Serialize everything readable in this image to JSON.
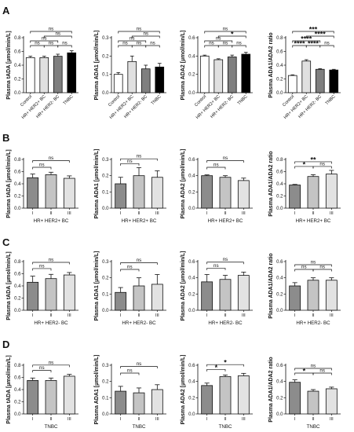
{
  "panel_labels": [
    "A",
    "B",
    "C",
    "D"
  ],
  "colors": {
    "control": "#ffffff",
    "hr_her2_pos": "#e0e0e0",
    "hr_her2_neg": "#7f7f7f",
    "tnbc": "#000000",
    "stage_I": "#8c8c8c",
    "stage_II": "#c4c4c4",
    "stage_III": "#e2e2e2",
    "axis": "#111111"
  },
  "chart_data": [
    {
      "type": "bar",
      "panel": "A",
      "ylabel": "Plasma tADA [µmol/min/L]",
      "ylim": [
        0,
        0.8
      ],
      "yticks": [
        "0.0",
        "0.2",
        "0.4",
        "0.6",
        "0.8"
      ],
      "xlabel": "",
      "categories": [
        "Control",
        "HR+ HER2+ BC",
        "HR+ HER2- BC",
        "TNBC"
      ],
      "values": [
        0.51,
        0.51,
        0.53,
        0.58
      ],
      "errors": [
        0.02,
        0.02,
        0.03,
        0.03
      ],
      "fills": [
        "#ffffff",
        "#e0e0e0",
        "#7f7f7f",
        "#000000"
      ],
      "sig": [
        {
          "a": 0,
          "b": 1,
          "label": "ns"
        },
        {
          "a": 1,
          "b": 2,
          "label": "ns"
        },
        {
          "a": 2,
          "b": 3,
          "label": "ns"
        },
        {
          "a": 0,
          "b": 2,
          "label": "ns"
        },
        {
          "a": 1,
          "b": 3,
          "label": "ns"
        },
        {
          "a": 0,
          "b": 3,
          "label": "ns"
        }
      ]
    },
    {
      "type": "bar",
      "panel": "A",
      "ylabel": "Plasma ADA1 [µmol/min/L]",
      "ylim": [
        0,
        0.3
      ],
      "yticks": [
        "0.0",
        "0.1",
        "0.2",
        "0.3"
      ],
      "xlabel": "",
      "categories": [
        "Control",
        "HR+ HER2+ BC",
        "HR+ HER2- BC",
        "TNBC"
      ],
      "values": [
        0.1,
        0.17,
        0.13,
        0.14
      ],
      "errors": [
        0.01,
        0.03,
        0.02,
        0.02
      ],
      "fills": [
        "#ffffff",
        "#e0e0e0",
        "#7f7f7f",
        "#000000"
      ],
      "sig": [
        {
          "a": 0,
          "b": 1,
          "label": "ns"
        },
        {
          "a": 1,
          "b": 2,
          "label": "ns"
        },
        {
          "a": 2,
          "b": 3,
          "label": "ns"
        },
        {
          "a": 0,
          "b": 2,
          "label": "ns"
        },
        {
          "a": 1,
          "b": 3,
          "label": "ns"
        },
        {
          "a": 0,
          "b": 3,
          "label": "ns"
        }
      ]
    },
    {
      "type": "bar",
      "panel": "A",
      "ylabel": "Plasma ADA2 [µmol/min/L]",
      "ylim": [
        0,
        0.6
      ],
      "yticks": [
        "0.0",
        "0.2",
        "0.4",
        "0.6"
      ],
      "xlabel": "",
      "categories": [
        "Control",
        "HR+ HER2+ BC",
        "HR+ HER2- BC",
        "TNBC"
      ],
      "values": [
        0.4,
        0.36,
        0.39,
        0.42
      ],
      "errors": [
        0.01,
        0.01,
        0.02,
        0.02
      ],
      "fills": [
        "#ffffff",
        "#e0e0e0",
        "#7f7f7f",
        "#000000"
      ],
      "sig": [
        {
          "a": 0,
          "b": 1,
          "label": "ns"
        },
        {
          "a": 1,
          "b": 2,
          "label": "ns"
        },
        {
          "a": 2,
          "b": 3,
          "label": "ns"
        },
        {
          "a": 0,
          "b": 2,
          "label": "ns"
        },
        {
          "a": 1,
          "b": 3,
          "label": "*"
        },
        {
          "a": 0,
          "b": 3,
          "label": "ns"
        }
      ]
    },
    {
      "type": "bar",
      "panel": "A",
      "ylabel": "Plasma ADA1/ADA2 ratio",
      "ylim": [
        0,
        0.8
      ],
      "yticks": [
        "0.0",
        "0.2",
        "0.4",
        "0.6",
        "0.8"
      ],
      "xlabel": "",
      "categories": [
        "Control",
        "HR+ HER2+ BC",
        "HR+ HER2- BC",
        "TNBC"
      ],
      "values": [
        0.25,
        0.46,
        0.34,
        0.33
      ],
      "errors": [
        0.01,
        0.02,
        0.01,
        0.01
      ],
      "fills": [
        "#ffffff",
        "#e0e0e0",
        "#7f7f7f",
        "#000000"
      ],
      "sig": [
        {
          "a": 0,
          "b": 1,
          "label": "****"
        },
        {
          "a": 1,
          "b": 2,
          "label": "****"
        },
        {
          "a": 2,
          "b": 3,
          "label": "ns"
        },
        {
          "a": 0,
          "b": 2,
          "label": "****"
        },
        {
          "a": 1,
          "b": 3,
          "label": "****"
        },
        {
          "a": 0,
          "b": 3,
          "label": "***"
        }
      ]
    },
    {
      "type": "bar",
      "panel": "B",
      "ylabel": "Plasma tADA [µmol/min/L]",
      "ylim": [
        0,
        0.8
      ],
      "yticks": [
        "0.0",
        "0.2",
        "0.4",
        "0.6",
        "0.8"
      ],
      "xlabel": "HR+ HER2+ BC",
      "categories": [
        "I",
        "II",
        "III"
      ],
      "values": [
        0.5,
        0.55,
        0.49
      ],
      "errors": [
        0.06,
        0.04,
        0.04
      ],
      "fills": [
        "#8c8c8c",
        "#c4c4c4",
        "#e2e2e2"
      ],
      "sig": [
        {
          "a": 0,
          "b": 1,
          "label": "ns"
        },
        {
          "a": 0,
          "b": 2,
          "label": "ns"
        }
      ]
    },
    {
      "type": "bar",
      "panel": "B",
      "ylabel": "Plasma ADA1 [µmol/min/L]",
      "ylim": [
        0,
        0.3
      ],
      "yticks": [
        "0.0",
        "0.1",
        "0.2",
        "0.3"
      ],
      "xlabel": "HR+ HER2+ BC",
      "categories": [
        "I",
        "II",
        "III"
      ],
      "values": [
        0.15,
        0.2,
        0.19
      ],
      "errors": [
        0.04,
        0.05,
        0.04
      ],
      "fills": [
        "#8c8c8c",
        "#c4c4c4",
        "#e2e2e2"
      ],
      "sig": [
        {
          "a": 0,
          "b": 1,
          "label": "ns"
        },
        {
          "a": 0,
          "b": 2,
          "label": "ns"
        }
      ]
    },
    {
      "type": "bar",
      "panel": "B",
      "ylabel": "Plasma ADA2 [µmol/min/L]",
      "ylim": [
        0,
        0.6
      ],
      "yticks": [
        "0.0",
        "0.2",
        "0.4",
        "0.6"
      ],
      "xlabel": "HR+ HER2+ BC",
      "categories": [
        "I",
        "II",
        "III"
      ],
      "values": [
        0.4,
        0.38,
        0.34
      ],
      "errors": [
        0.01,
        0.02,
        0.03
      ],
      "fills": [
        "#8c8c8c",
        "#c4c4c4",
        "#e2e2e2"
      ],
      "sig": [
        {
          "a": 0,
          "b": 1,
          "label": "ns"
        },
        {
          "a": 0,
          "b": 2,
          "label": "ns"
        }
      ]
    },
    {
      "type": "bar",
      "panel": "B",
      "ylabel": "Plasma ADA1/ADA2 ratio",
      "ylim": [
        0,
        0.8
      ],
      "yticks": [
        "0.0",
        "0.2",
        "0.4",
        "0.6",
        "0.8"
      ],
      "xlabel": "HR+ HER2+ BC",
      "categories": [
        "I",
        "II",
        "III"
      ],
      "values": [
        0.38,
        0.52,
        0.56
      ],
      "errors": [
        0.01,
        0.03,
        0.06
      ],
      "fills": [
        "#8c8c8c",
        "#c4c4c4",
        "#e2e2e2"
      ],
      "sig": [
        {
          "a": 0,
          "b": 1,
          "label": "*"
        },
        {
          "a": 1,
          "b": 2,
          "label": "ns"
        },
        {
          "a": 0,
          "b": 2,
          "label": "**"
        }
      ]
    },
    {
      "type": "bar",
      "panel": "C",
      "ylabel": "Plasma tADA [µmol/min/L]",
      "ylim": [
        0,
        0.8
      ],
      "yticks": [
        "0.0",
        "0.2",
        "0.4",
        "0.6",
        "0.8"
      ],
      "xlabel": "HR+ HER2- BC",
      "categories": [
        "I",
        "II",
        "III"
      ],
      "values": [
        0.46,
        0.52,
        0.58
      ],
      "errors": [
        0.1,
        0.07,
        0.04
      ],
      "fills": [
        "#8c8c8c",
        "#c4c4c4",
        "#e2e2e2"
      ],
      "sig": [
        {
          "a": 0,
          "b": 1,
          "label": "ns"
        },
        {
          "a": 0,
          "b": 2,
          "label": "ns"
        }
      ]
    },
    {
      "type": "bar",
      "panel": "C",
      "ylabel": "Plasma ADA1 [µmol/min/L]",
      "ylim": [
        0,
        0.3
      ],
      "yticks": [
        "0.0",
        "0.1",
        "0.2",
        "0.3"
      ],
      "xlabel": "HR+ HER2- BC",
      "categories": [
        "I",
        "II",
        "III"
      ],
      "values": [
        0.11,
        0.15,
        0.16
      ],
      "errors": [
        0.03,
        0.05,
        0.06
      ],
      "fills": [
        "#8c8c8c",
        "#c4c4c4",
        "#e2e2e2"
      ],
      "sig": [
        {
          "a": 0,
          "b": 1,
          "label": "ns"
        },
        {
          "a": 0,
          "b": 2,
          "label": "ns"
        }
      ]
    },
    {
      "type": "bar",
      "panel": "C",
      "ylabel": "Plasma ADA2 [µmol/min/L]",
      "ylim": [
        0,
        0.6
      ],
      "yticks": [
        "0.0",
        "0.2",
        "0.4",
        "0.6"
      ],
      "xlabel": "HR+ HER2- BC",
      "categories": [
        "I",
        "II",
        "III"
      ],
      "values": [
        0.35,
        0.38,
        0.43
      ],
      "errors": [
        0.09,
        0.05,
        0.04
      ],
      "fills": [
        "#8c8c8c",
        "#c4c4c4",
        "#e2e2e2"
      ],
      "sig": [
        {
          "a": 0,
          "b": 1,
          "label": "ns"
        },
        {
          "a": 0,
          "b": 2,
          "label": "ns"
        }
      ]
    },
    {
      "type": "bar",
      "panel": "C",
      "ylabel": "Plasma ADA1/ADA2 ratio",
      "ylim": [
        0,
        0.6
      ],
      "yticks": [
        "0.0",
        "0.2",
        "0.4",
        "0.6"
      ],
      "xlabel": "HR+ HER2- BC",
      "categories": [
        "I",
        "II",
        "III"
      ],
      "values": [
        0.3,
        0.37,
        0.37
      ],
      "errors": [
        0.04,
        0.03,
        0.03
      ],
      "fills": [
        "#8c8c8c",
        "#c4c4c4",
        "#e2e2e2"
      ],
      "sig": [
        {
          "a": 0,
          "b": 1,
          "label": "ns"
        },
        {
          "a": 1,
          "b": 2,
          "label": "ns"
        },
        {
          "a": 0,
          "b": 2,
          "label": "ns"
        }
      ]
    },
    {
      "type": "bar",
      "panel": "D",
      "ylabel": "Plasma tADA [µmol/min/L]",
      "ylim": [
        0,
        0.8
      ],
      "yticks": [
        "0.0",
        "0.2",
        "0.4",
        "0.6",
        "0.8"
      ],
      "xlabel": "TNBC",
      "categories": [
        "I",
        "II",
        "III"
      ],
      "values": [
        0.55,
        0.55,
        0.62
      ],
      "errors": [
        0.04,
        0.04,
        0.03
      ],
      "fills": [
        "#8c8c8c",
        "#c4c4c4",
        "#e2e2e2"
      ],
      "sig": [
        {
          "a": 0,
          "b": 1,
          "label": "ns"
        },
        {
          "a": 0,
          "b": 2,
          "label": "ns"
        }
      ]
    },
    {
      "type": "bar",
      "panel": "D",
      "ylabel": "Plasma ADA1 [µmol/min/L]",
      "ylim": [
        0,
        0.3
      ],
      "yticks": [
        "0.0",
        "0.1",
        "0.2",
        "0.3"
      ],
      "xlabel": "TNBC",
      "categories": [
        "I",
        "II",
        "III"
      ],
      "values": [
        0.14,
        0.13,
        0.15
      ],
      "errors": [
        0.03,
        0.03,
        0.03
      ],
      "fills": [
        "#8c8c8c",
        "#c4c4c4",
        "#e2e2e2"
      ],
      "sig": [
        {
          "a": 0,
          "b": 1,
          "label": "ns"
        },
        {
          "a": 0,
          "b": 2,
          "label": "ns"
        }
      ]
    },
    {
      "type": "bar",
      "panel": "D",
      "ylabel": "Plasma ADA2 [µmol/min/L]",
      "ylim": [
        0,
        0.6
      ],
      "yticks": [
        "0.0",
        "0.2",
        "0.4",
        "0.6"
      ],
      "xlabel": "TNBC",
      "categories": [
        "I",
        "II",
        "III"
      ],
      "values": [
        0.35,
        0.46,
        0.47
      ],
      "errors": [
        0.03,
        0.02,
        0.03
      ],
      "fills": [
        "#8c8c8c",
        "#c4c4c4",
        "#e2e2e2"
      ],
      "sig": [
        {
          "a": 0,
          "b": 1,
          "label": "*"
        },
        {
          "a": 0,
          "b": 2,
          "label": "*"
        }
      ]
    },
    {
      "type": "bar",
      "panel": "D",
      "ylabel": "Plasma ADA1/ADA2 ratio",
      "ylim": [
        0,
        0.6
      ],
      "yticks": [
        "0.0",
        "0.2",
        "0.4",
        "0.6"
      ],
      "xlabel": "TNBC",
      "categories": [
        "I",
        "II",
        "III"
      ],
      "values": [
        0.39,
        0.28,
        0.31
      ],
      "errors": [
        0.03,
        0.02,
        0.02
      ],
      "fills": [
        "#8c8c8c",
        "#c4c4c4",
        "#e2e2e2"
      ],
      "sig": [
        {
          "a": 0,
          "b": 1,
          "label": "*"
        },
        {
          "a": 1,
          "b": 2,
          "label": "ns"
        },
        {
          "a": 0,
          "b": 2,
          "label": "ns"
        }
      ]
    }
  ]
}
